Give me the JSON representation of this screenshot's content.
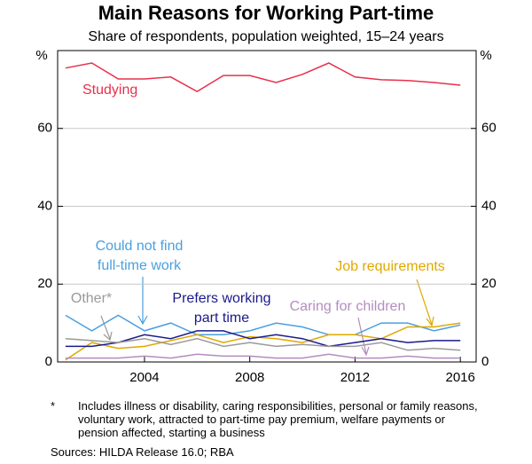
{
  "chart_data": {
    "type": "line",
    "title": "Main Reasons for Working Part-time",
    "subtitle": "Share of respondents, population weighted, 15–24 years",
    "y_unit": "%",
    "x": [
      2001,
      2002,
      2003,
      2004,
      2005,
      2006,
      2007,
      2008,
      2009,
      2010,
      2011,
      2012,
      2013,
      2014,
      2015,
      2016
    ],
    "xlim": [
      2000.7,
      2016.6
    ],
    "xticks": [
      2004,
      2008,
      2012,
      2016
    ],
    "ylim": [
      0,
      80
    ],
    "yticks": [
      0,
      20,
      40,
      60
    ],
    "grid": true,
    "series": [
      {
        "name": [
          "Studying"
        ],
        "color": "#e8304a",
        "values": [
          75.5,
          76.8,
          72.7,
          72.7,
          73.2,
          69.5,
          73.6,
          73.6,
          71.8,
          73.9,
          76.8,
          73.2,
          72.5,
          72.3,
          71.8,
          71.1
        ]
      },
      {
        "name": [
          "Could not find",
          "full-time work"
        ],
        "color": "#4a9fe0",
        "values": [
          12,
          8,
          12,
          8,
          10,
          7,
          7,
          8,
          10,
          9,
          7,
          7,
          10,
          10,
          8,
          9.5
        ]
      },
      {
        "name": [
          "Job requirements"
        ],
        "color": "#e0a800",
        "values": [
          0.5,
          5,
          3.5,
          4,
          5.5,
          7,
          5,
          6.5,
          6,
          5,
          7,
          7,
          6,
          9,
          9,
          10
        ]
      },
      {
        "name": [
          "Prefers working",
          "part time"
        ],
        "color": "#1a1a8c",
        "values": [
          4,
          4,
          5,
          7,
          6,
          8,
          8,
          6,
          7,
          6,
          4,
          5,
          6,
          5,
          5.5,
          5.5
        ]
      },
      {
        "name": [
          "Other*"
        ],
        "color": "#9a9a9a",
        "values": [
          6,
          5.5,
          5,
          6,
          4.5,
          6,
          4,
          5,
          4,
          4.5,
          4,
          4,
          5,
          3,
          3.5,
          3
        ]
      },
      {
        "name": [
          "Caring for children"
        ],
        "color": "#b48cc0",
        "values": [
          1,
          1,
          1,
          1.5,
          1,
          2,
          1.5,
          1.5,
          1,
          1,
          2,
          1,
          1,
          1.5,
          1,
          1
        ]
      }
    ],
    "footnote_marker": "*",
    "footnote": "Includes illness or disability, caring responsibilities, personal or family reasons, voluntary work, attracted to part-time pay premium, welfare payments or pension affected, starting a business",
    "source": "Sources:  HILDA Release 16.0; RBA"
  }
}
